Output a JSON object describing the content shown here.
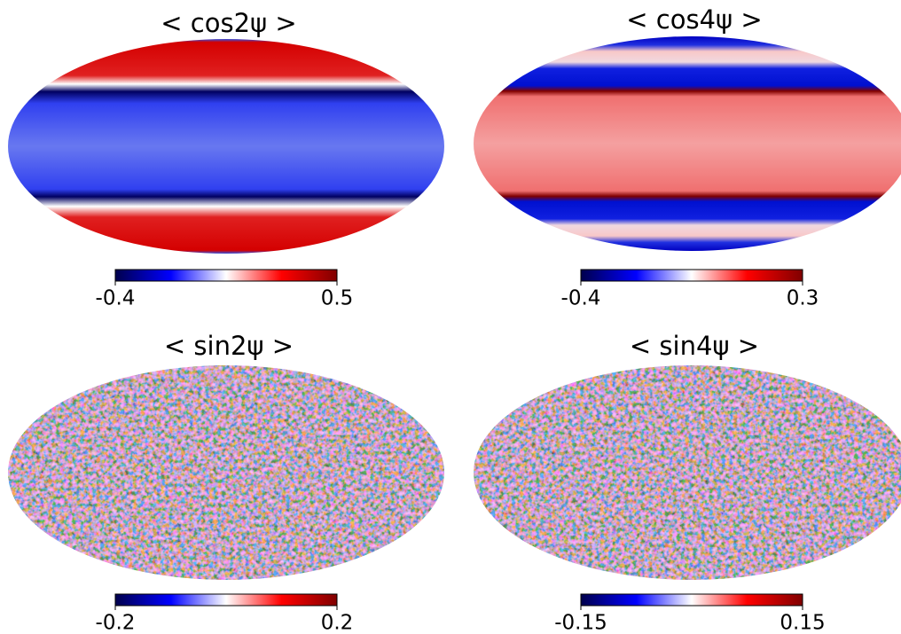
{
  "chart_data": [
    {
      "type": "map",
      "title": "< cos2ψ >",
      "vlim": [
        -0.4,
        0.5
      ],
      "ticks": [
        -0.4,
        0.5
      ]
    },
    {
      "type": "map",
      "title": "< cos4ψ >",
      "vlim": [
        -0.4,
        0.3
      ],
      "ticks": [
        -0.4,
        0.3
      ]
    },
    {
      "type": "map",
      "title": "< sin2ψ >",
      "vlim": [
        -0.2,
        0.2
      ],
      "ticks": [
        -0.2,
        0.2
      ]
    },
    {
      "type": "map",
      "title": "< sin4ψ >",
      "vlim": [
        -0.15,
        0.15
      ],
      "ticks": [
        -0.15,
        0.15
      ]
    }
  ]
}
